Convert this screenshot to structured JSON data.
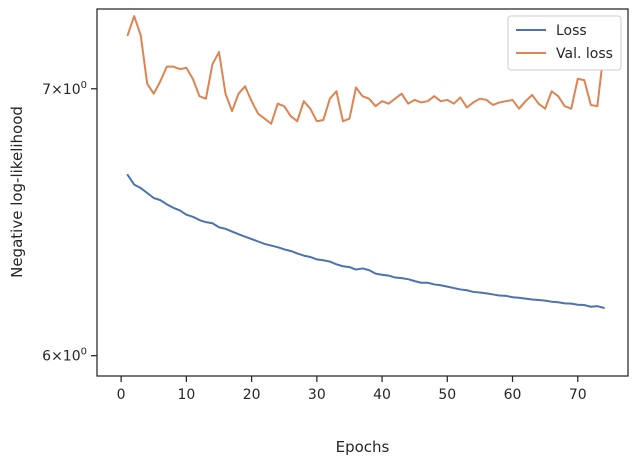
{
  "chart_data": {
    "type": "line",
    "title": "",
    "xlabel": "Epochs",
    "ylabel": "Negative log-likelihood",
    "xlim": [
      -3.7,
      77.7
    ],
    "ylim": [
      5.93,
      7.33
    ],
    "yscale": "log",
    "grid": false,
    "legend_position": "top-right",
    "x_ticks": [
      0,
      10,
      20,
      30,
      40,
      50,
      60,
      70
    ],
    "y_ticks": [
      {
        "value": 6,
        "base": "6",
        "times": "×",
        "pow": "10",
        "exp": "0"
      },
      {
        "value": 7,
        "base": "7",
        "times": "×",
        "pow": "10",
        "exp": "0"
      }
    ],
    "x": [
      1,
      2,
      3,
      4,
      5,
      6,
      7,
      8,
      9,
      10,
      11,
      12,
      13,
      14,
      15,
      16,
      17,
      18,
      19,
      20,
      21,
      22,
      23,
      24,
      25,
      26,
      27,
      28,
      29,
      30,
      31,
      32,
      33,
      34,
      35,
      36,
      37,
      38,
      39,
      40,
      41,
      42,
      43,
      44,
      45,
      46,
      47,
      48,
      49,
      50,
      51,
      52,
      53,
      54,
      55,
      56,
      57,
      58,
      59,
      60,
      61,
      62,
      63,
      64,
      65,
      66,
      67,
      68,
      69,
      70,
      71,
      72,
      73,
      74
    ],
    "series": [
      {
        "name": "Loss",
        "color": "#4c72b0",
        "values": [
          6.66,
          6.623,
          6.61,
          6.591,
          6.572,
          6.564,
          6.548,
          6.535,
          6.525,
          6.509,
          6.501,
          6.489,
          6.481,
          6.477,
          6.462,
          6.456,
          6.446,
          6.436,
          6.427,
          6.418,
          6.409,
          6.4,
          6.394,
          6.388,
          6.38,
          6.374,
          6.365,
          6.357,
          6.352,
          6.343,
          6.34,
          6.335,
          6.325,
          6.318,
          6.315,
          6.306,
          6.31,
          6.304,
          6.291,
          6.287,
          6.284,
          6.277,
          6.275,
          6.271,
          6.264,
          6.258,
          6.258,
          6.252,
          6.249,
          6.244,
          6.239,
          6.234,
          6.231,
          6.225,
          6.223,
          6.22,
          6.216,
          6.212,
          6.211,
          6.206,
          6.204,
          6.201,
          6.198,
          6.196,
          6.194,
          6.19,
          6.188,
          6.184,
          6.183,
          6.179,
          6.178,
          6.172,
          6.174,
          6.168
        ]
      },
      {
        "name": "Val. loss",
        "color": "#dd8452",
        "values": [
          7.22,
          7.3,
          7.22,
          7.02,
          6.98,
          7.03,
          7.09,
          7.09,
          7.08,
          7.085,
          7.04,
          6.97,
          6.96,
          7.1,
          7.15,
          6.98,
          6.91,
          6.98,
          7.01,
          6.95,
          6.9,
          6.88,
          6.86,
          6.94,
          6.93,
          6.89,
          6.87,
          6.95,
          6.92,
          6.87,
          6.875,
          6.96,
          6.99,
          6.87,
          6.88,
          7.005,
          6.97,
          6.96,
          6.93,
          6.95,
          6.94,
          6.96,
          6.98,
          6.94,
          6.955,
          6.945,
          6.95,
          6.97,
          6.95,
          6.955,
          6.94,
          6.965,
          6.925,
          6.945,
          6.96,
          6.955,
          6.935,
          6.945,
          6.95,
          6.955,
          6.92,
          6.95,
          6.975,
          6.94,
          6.92,
          6.99,
          6.97,
          6.93,
          6.92,
          7.04,
          7.035,
          6.935,
          6.93,
          7.155
        ]
      }
    ]
  }
}
